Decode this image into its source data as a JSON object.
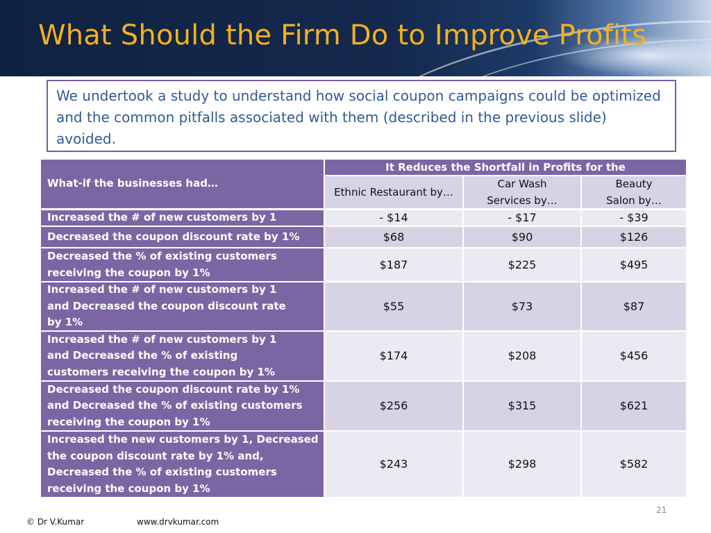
{
  "slide": {
    "title": "What Should the Firm Do to Improve Profits",
    "intro": "We undertook a study to understand how social coupon campaigns could be optimized and the common pitfalls associated with them (described in the previous slide) avoided."
  },
  "table": {
    "row_header_label": "What-if the businesses had…",
    "group_header": "It Reduces the Shortfall in Profits for the",
    "columns": [
      "Ethnic Restaurant by…",
      "Car Wash Services by…",
      "Beauty Salon by…"
    ],
    "rows": [
      {
        "label": "Increased the # of new customers by 1",
        "values": [
          "- $14",
          "- $17",
          "- $39"
        ]
      },
      {
        "label": "Decreased the coupon discount rate by 1%",
        "values": [
          "$68",
          "$90",
          "$126"
        ]
      },
      {
        "label": "Decreased the % of existing customers receiving the coupon by 1%",
        "values": [
          "$187",
          "$225",
          "$495"
        ]
      },
      {
        "label": "Increased the # of new customers by 1 and Decreased the coupon discount rate by 1%",
        "values": [
          "$55",
          "$73",
          "$87"
        ]
      },
      {
        "label": "Increased the # of new customers by 1 and Decreased the % of existing customers receiving the coupon by 1%",
        "values": [
          "$174",
          "$208",
          "$456"
        ]
      },
      {
        "label": "Decreased the coupon discount rate by 1% and Decreased the % of existing customers receiving the coupon by 1%",
        "values": [
          "$256",
          "$315",
          "$621"
        ]
      },
      {
        "label": "Increased the new customers by 1, Decreased the coupon discount rate by 1% and, Decreased the % of existing customers receiving the coupon by 1%",
        "values": [
          "$243",
          "$298",
          "$582"
        ]
      }
    ]
  },
  "footer": {
    "copyright": "© Dr V.Kumar",
    "website": "www.drvkumar.com",
    "page_number": "21"
  }
}
